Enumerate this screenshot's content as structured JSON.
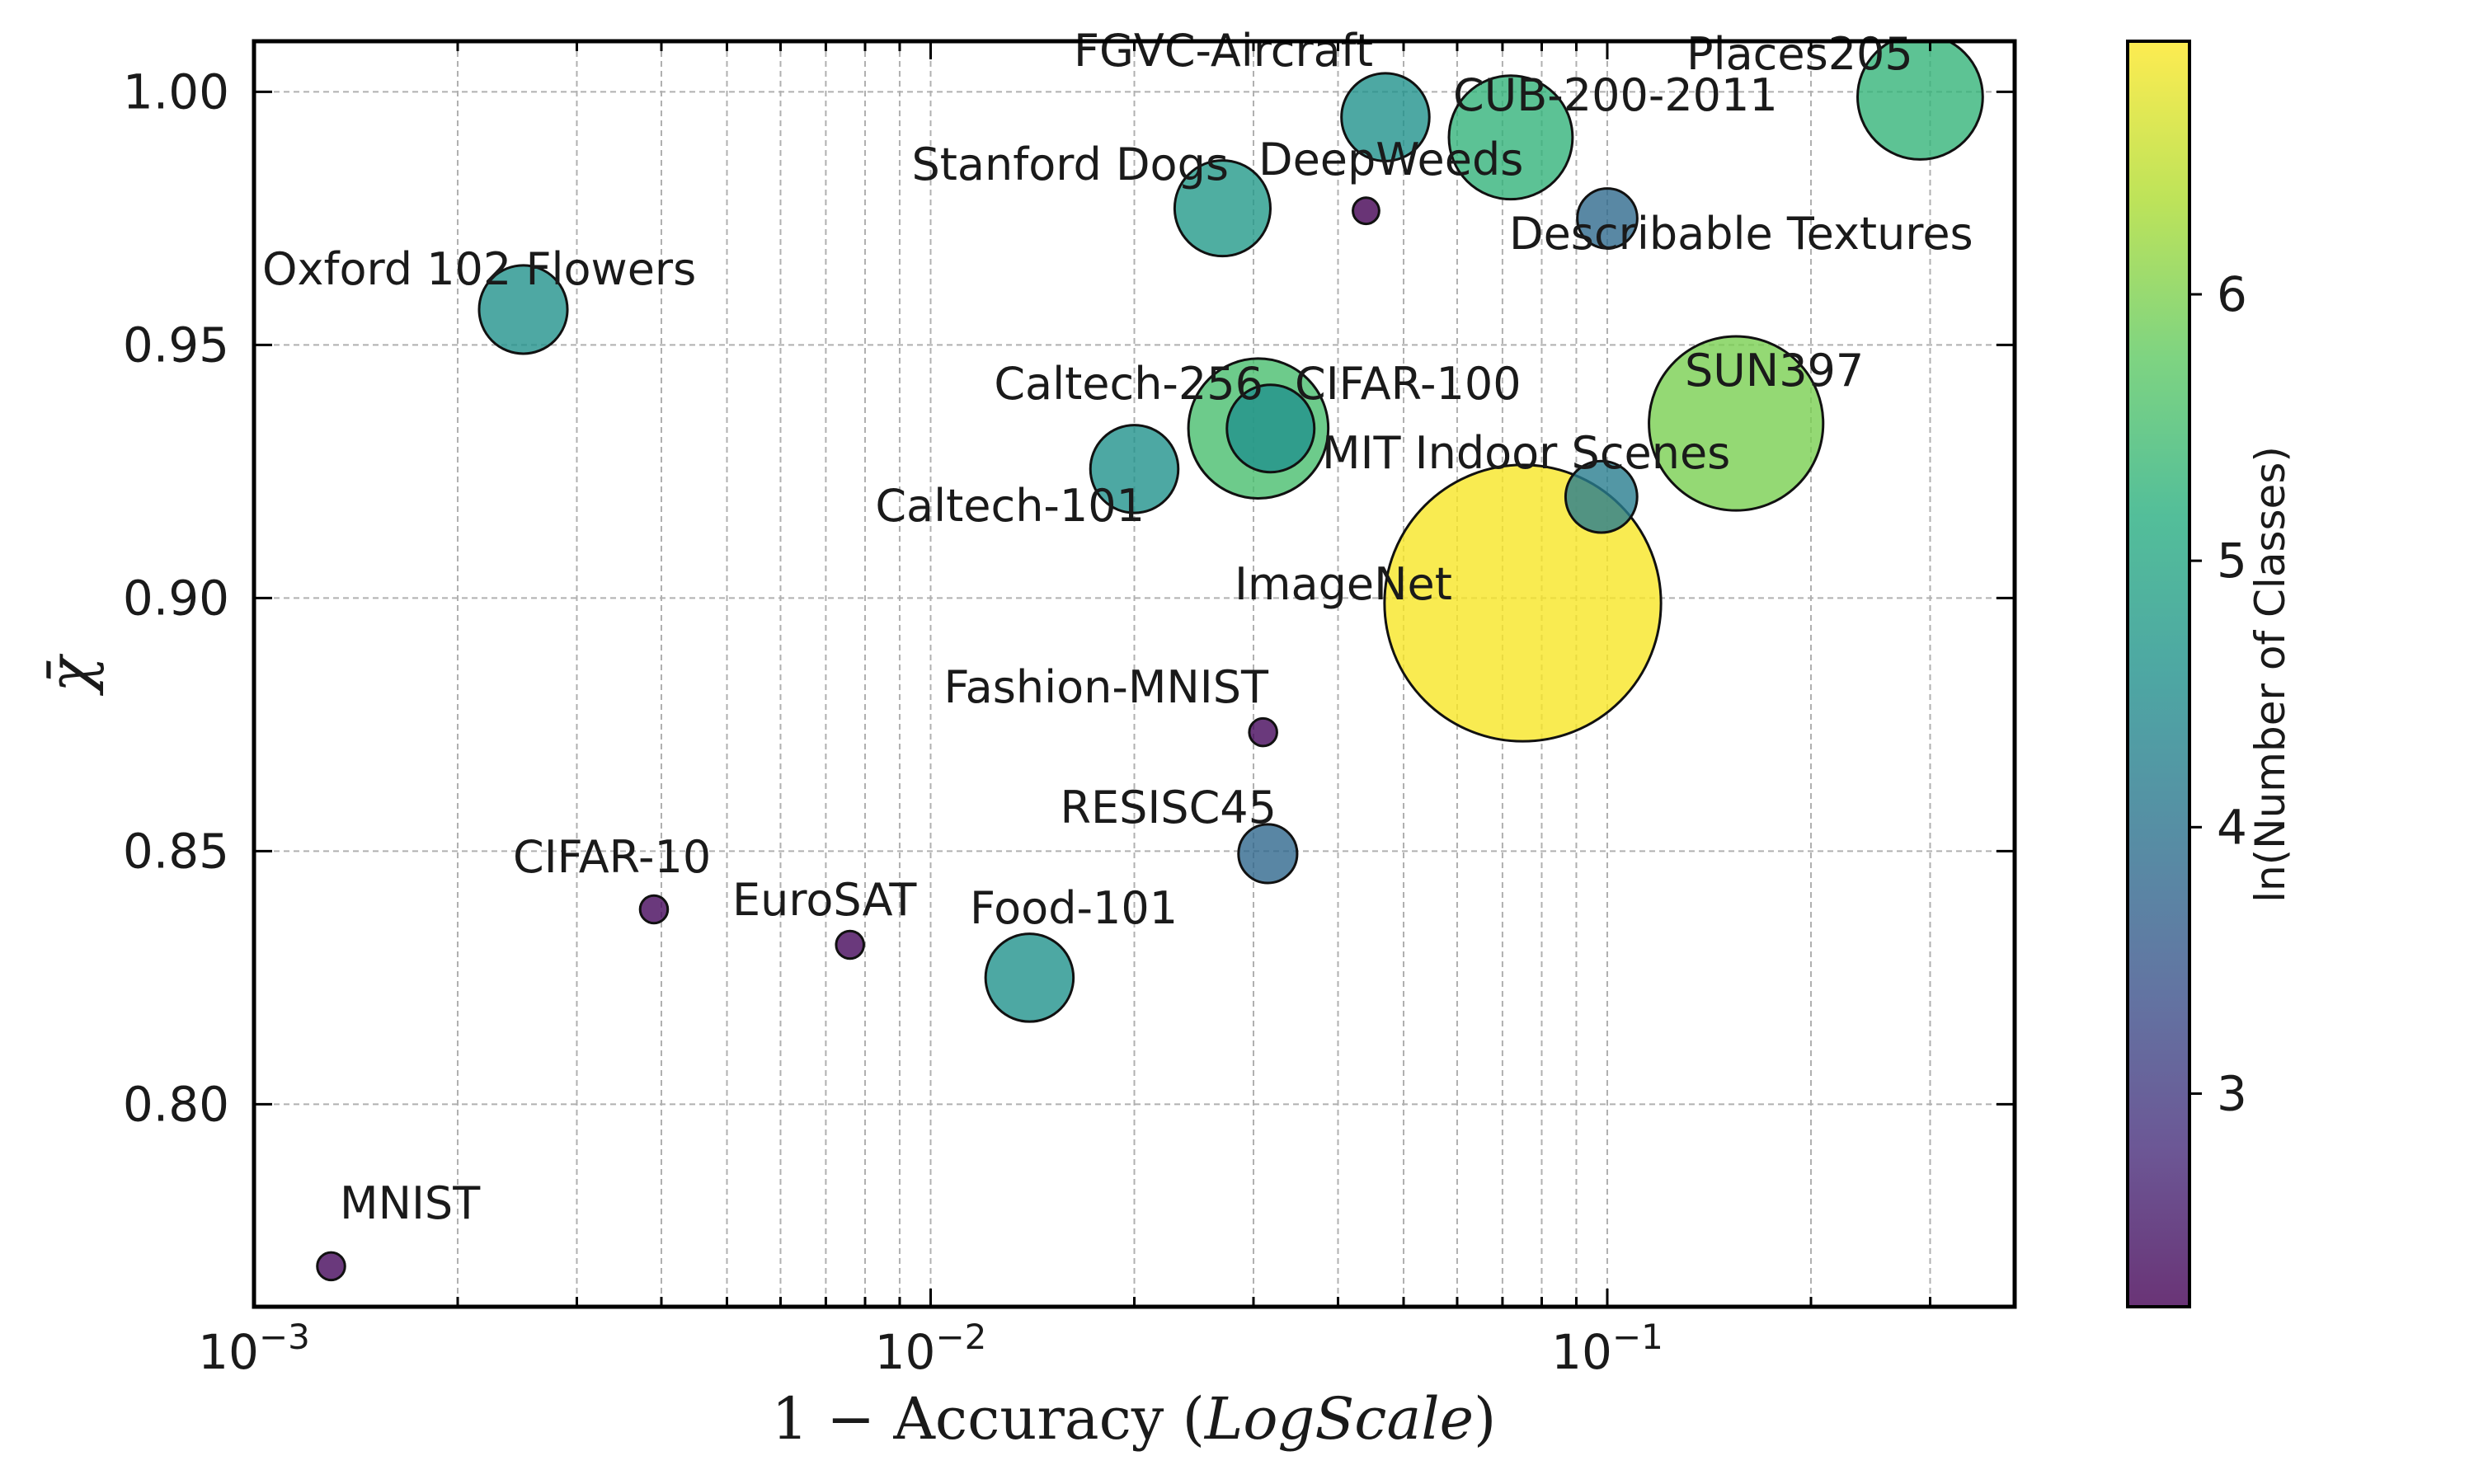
{
  "chart_data": {
    "type": "scatter",
    "xlabel_prefix": "1 − Accuracy (",
    "xlabel_italic": "LogScale",
    "xlabel_suffix": ")",
    "ylabel": "χ̄",
    "xscale": "log",
    "xlim": [
      0.001,
      0.4
    ],
    "ylim": [
      0.76,
      1.01
    ],
    "grid": true,
    "x_ticks": [
      {
        "value": 0.001,
        "base": "10",
        "exp": "−3"
      },
      {
        "value": 0.01,
        "base": "10",
        "exp": "−2"
      },
      {
        "value": 0.1,
        "base": "10",
        "exp": "−1"
      }
    ],
    "y_ticks": [
      {
        "value": 0.8,
        "label": "0.80"
      },
      {
        "value": 0.85,
        "label": "0.85"
      },
      {
        "value": 0.9,
        "label": "0.90"
      },
      {
        "value": 0.95,
        "label": "0.95"
      },
      {
        "value": 1.0,
        "label": "1.00"
      }
    ],
    "colorbar": {
      "label": "ln(Number of Classes)",
      "min": 2.2,
      "max": 6.95,
      "colormap": "viridis",
      "ticks": [
        {
          "value": 3,
          "label": "3"
        },
        {
          "value": 4,
          "label": "4"
        },
        {
          "value": 5,
          "label": "5"
        },
        {
          "value": 6,
          "label": "6"
        }
      ]
    },
    "points": [
      {
        "name": "MNIST",
        "x": 0.0013,
        "y": 0.768,
        "ln_classes": 2.303
      },
      {
        "name": "CIFAR-10",
        "x": 0.0039,
        "y": 0.8385,
        "ln_classes": 2.303
      },
      {
        "name": "EuroSAT",
        "x": 0.0076,
        "y": 0.8315,
        "ln_classes": 2.303
      },
      {
        "name": "Food-101",
        "x": 0.014,
        "y": 0.825,
        "ln_classes": 4.615
      },
      {
        "name": "Fashion-MNIST",
        "x": 0.031,
        "y": 0.8735,
        "ln_classes": 2.303
      },
      {
        "name": "RESISC45",
        "x": 0.0315,
        "y": 0.8495,
        "ln_classes": 3.807
      },
      {
        "name": "Oxford 102 Flowers",
        "x": 0.0025,
        "y": 0.957,
        "ln_classes": 4.625
      },
      {
        "name": "Caltech-101",
        "x": 0.02,
        "y": 0.9255,
        "ln_classes": 4.615
      },
      {
        "name": "Caltech-256",
        "x": 0.0305,
        "y": 0.9335,
        "ln_classes": 5.545
      },
      {
        "name": "CIFAR-100",
        "x": 0.0318,
        "y": 0.9335,
        "ln_classes": 4.605
      },
      {
        "name": "Stanford Dogs",
        "x": 0.027,
        "y": 0.977,
        "ln_classes": 4.787
      },
      {
        "name": "DeepWeeds",
        "x": 0.044,
        "y": 0.9765,
        "ln_classes": 2.197
      },
      {
        "name": "FGVC-Aircraft",
        "x": 0.047,
        "y": 0.995,
        "ln_classes": 4.615
      },
      {
        "name": "CUB-200-2011",
        "x": 0.072,
        "y": 0.991,
        "ln_classes": 5.298
      },
      {
        "name": "Describable Textures",
        "x": 0.1,
        "y": 0.975,
        "ln_classes": 3.85
      },
      {
        "name": "MIT Indoor Scenes",
        "x": 0.098,
        "y": 0.92,
        "ln_classes": 4.205
      },
      {
        "name": "SUN397",
        "x": 0.155,
        "y": 0.9345,
        "ln_classes": 5.984
      },
      {
        "name": "ImageNet",
        "x": 0.075,
        "y": 0.899,
        "ln_classes": 6.908
      },
      {
        "name": "Places205",
        "x": 0.29,
        "y": 0.999,
        "ln_classes": 5.323
      }
    ]
  }
}
